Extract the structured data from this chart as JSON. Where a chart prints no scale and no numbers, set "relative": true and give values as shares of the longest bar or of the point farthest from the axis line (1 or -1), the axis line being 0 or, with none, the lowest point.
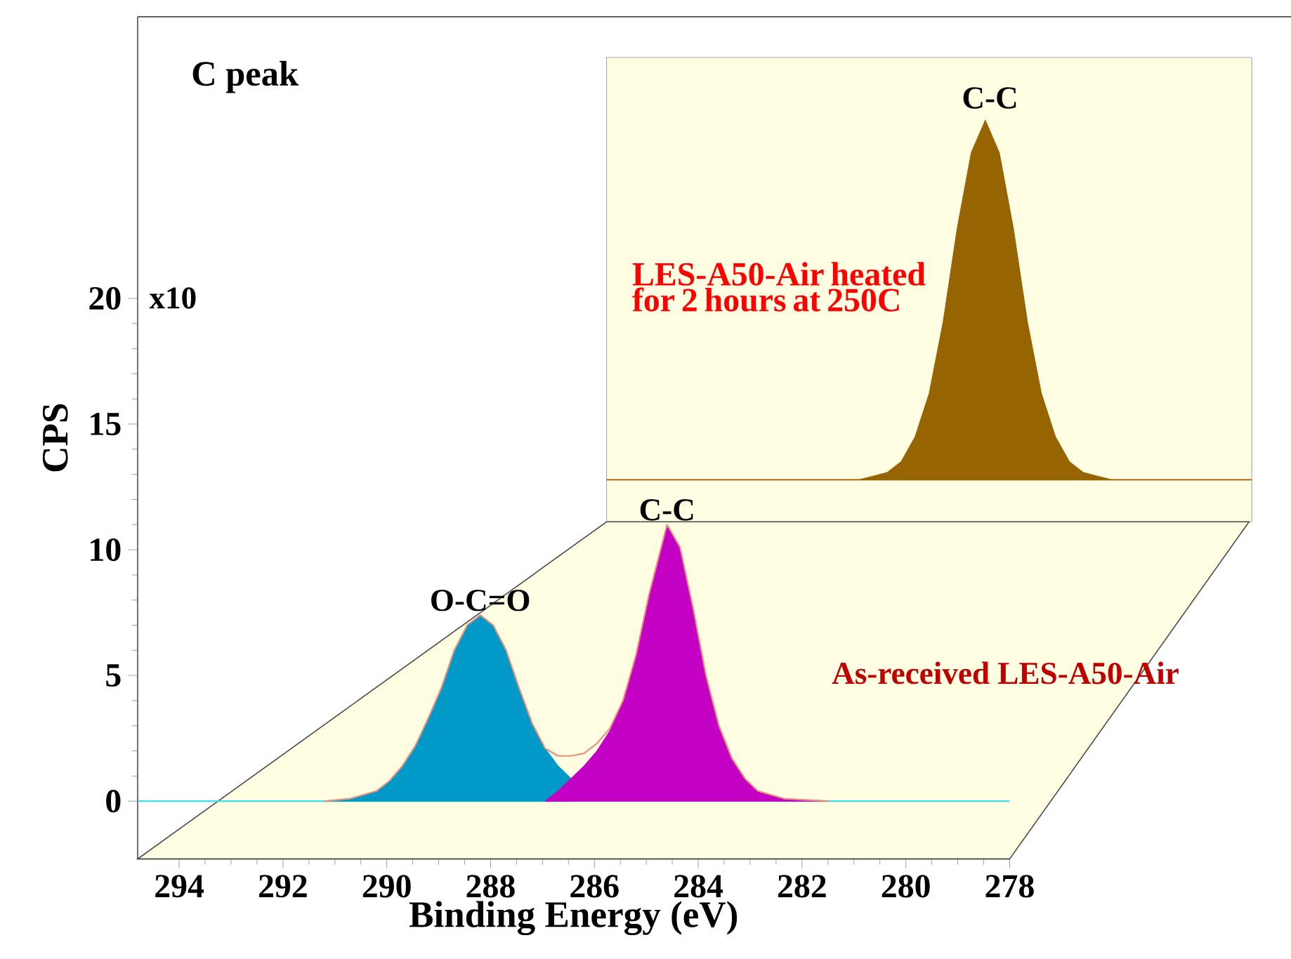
{
  "chart_data": [
    {
      "type": "area",
      "title": "C peak",
      "xlabel": "Binding Energy (eV)",
      "ylabel": "CPS",
      "annotations": [
        "x10",
        {
          "text": "O-C=O",
          "x": 288.2,
          "y": 7.4
        },
        {
          "text": "C-C",
          "x": 284.6,
          "y": 11.0
        },
        "As-received LES-A50-Air"
      ],
      "xlim": [
        294.8,
        278
      ],
      "ylim": [
        -2.3,
        31.2
      ],
      "xticks": [
        294,
        292,
        290,
        288,
        286,
        284,
        282,
        280,
        278
      ],
      "yticks": [
        0,
        5,
        10,
        15,
        20
      ],
      "ref_lines": [
        {
          "axis": "y",
          "value": 0,
          "color": "#40e0e0"
        }
      ],
      "series": [
        {
          "type": "area",
          "color": "#0099c8",
          "x": [
            291.2,
            290.7,
            290.2,
            289.95,
            289.7,
            289.45,
            289.2,
            288.95,
            288.7,
            288.45,
            288.2,
            287.95,
            287.7,
            287.45,
            287.2,
            286.95,
            286.7,
            286.45
          ],
          "values": [
            0,
            0.1,
            0.4,
            0.8,
            1.4,
            2.2,
            3.3,
            4.5,
            6.0,
            7.0,
            7.4,
            7.0,
            6.0,
            4.5,
            3.1,
            2.1,
            1.4,
            0.9
          ]
        },
        {
          "type": "area",
          "color": "#c400c4",
          "x": [
            286.95,
            286.7,
            286.45,
            286.2,
            285.95,
            285.7,
            285.45,
            285.2,
            284.95,
            284.6,
            284.35,
            284.1,
            283.85,
            283.6,
            283.35,
            283.1,
            282.85,
            282.35,
            281.5
          ],
          "values": [
            0,
            0.4,
            0.9,
            1.4,
            2.0,
            2.8,
            4.0,
            5.8,
            8.2,
            11.0,
            10.1,
            7.7,
            5.0,
            3.0,
            1.7,
            0.9,
            0.4,
            0.1,
            0
          ]
        },
        {
          "type": "line",
          "color": "#e8907a",
          "x": [
            291.2,
            290.7,
            290.2,
            289.95,
            289.7,
            289.45,
            289.2,
            288.95,
            288.7,
            288.45,
            288.2,
            287.95,
            287.7,
            287.45,
            287.2,
            286.95,
            286.7,
            286.45,
            286.2,
            285.95,
            285.7,
            285.45,
            285.2,
            284.95,
            284.6,
            284.35,
            284.1,
            283.85,
            283.6,
            283.35,
            283.1,
            282.85,
            282.35,
            281.5
          ],
          "values": [
            0,
            0.1,
            0.4,
            0.8,
            1.4,
            2.2,
            3.3,
            4.5,
            6.0,
            7.0,
            7.4,
            7.0,
            6.0,
            4.5,
            3.1,
            2.1,
            1.8,
            1.8,
            1.9,
            2.3,
            2.9,
            4.0,
            5.8,
            8.2,
            11.0,
            10.1,
            7.7,
            5.0,
            3.0,
            1.7,
            0.9,
            0.4,
            0.1,
            0
          ]
        }
      ]
    },
    {
      "type": "area",
      "relative": true,
      "color": "#966400",
      "annotations": [
        "C-C",
        "LES-A50-Air heated for 2 hours at 250C"
      ],
      "ref_lines": [
        {
          "axis": "y",
          "value": 0,
          "color": "#d0a060"
        }
      ],
      "categories": [
        null,
        null,
        null,
        null,
        null,
        null,
        null,
        null,
        null,
        null,
        null,
        null,
        null,
        null,
        null,
        null,
        null,
        null,
        null,
        null,
        null,
        null,
        null,
        null,
        null,
        null,
        null,
        null,
        null,
        null,
        null,
        null,
        null,
        null,
        null,
        null,
        null,
        null,
        null,
        null,
        null,
        null,
        null,
        null,
        null,
        null,
        null
      ],
      "values": [
        0,
        0,
        0,
        0,
        0,
        0,
        0,
        0,
        0,
        0,
        0,
        0,
        0,
        0,
        0,
        0,
        0,
        0,
        0,
        0.01,
        0.02,
        0.05,
        0.12,
        0.24,
        0.44,
        0.7,
        0.91,
        1,
        0.91,
        0.7,
        0.44,
        0.24,
        0.12,
        0.05,
        0.02,
        0.01,
        0,
        0,
        0,
        0,
        0,
        0,
        0,
        0,
        0,
        0,
        0
      ]
    }
  ]
}
